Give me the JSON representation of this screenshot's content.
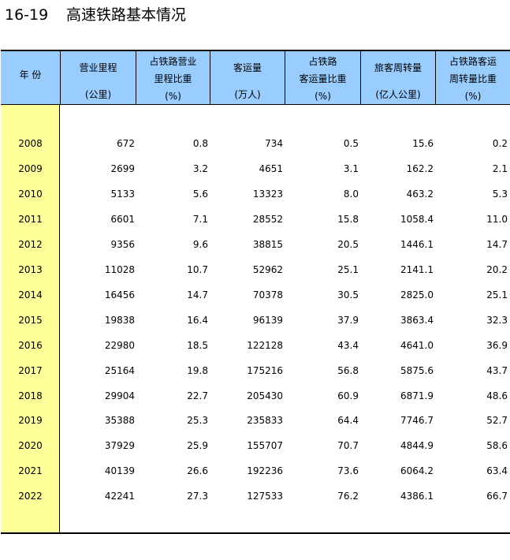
{
  "title": {
    "number": "16-19",
    "text": "高速铁路基本情况"
  },
  "headers": [
    {
      "lines": [
        "年  份"
      ]
    },
    {
      "lines": [
        "营业里程",
        "(公里)"
      ]
    },
    {
      "lines": [
        "占铁路营业",
        "里程比重",
        "(%)"
      ]
    },
    {
      "lines": [
        "客运量",
        "(万人)"
      ]
    },
    {
      "lines": [
        "占铁路",
        "客运量比重",
        "(%)"
      ]
    },
    {
      "lines": [
        "旅客周转量",
        "(亿人公里)"
      ]
    },
    {
      "lines": [
        "占铁路客运",
        "周转量比重",
        "(%)"
      ]
    }
  ],
  "rows": [
    [
      "2008",
      "672",
      "0.8",
      "734",
      "0.5",
      "15.6",
      "0.2"
    ],
    [
      "2009",
      "2699",
      "3.2",
      "4651",
      "3.1",
      "162.2",
      "2.1"
    ],
    [
      "2010",
      "5133",
      "5.6",
      "13323",
      "8.0",
      "463.2",
      "5.3"
    ],
    [
      "2011",
      "6601",
      "7.1",
      "28552",
      "15.8",
      "1058.4",
      "11.0"
    ],
    [
      "2012",
      "9356",
      "9.6",
      "38815",
      "20.5",
      "1446.1",
      "14.7"
    ],
    [
      "2013",
      "11028",
      "10.7",
      "52962",
      "25.1",
      "2141.1",
      "20.2"
    ],
    [
      "2014",
      "16456",
      "14.7",
      "70378",
      "30.5",
      "2825.0",
      "25.1"
    ],
    [
      "2015",
      "19838",
      "16.4",
      "96139",
      "37.9",
      "3863.4",
      "32.3"
    ],
    [
      "2016",
      "22980",
      "18.5",
      "122128",
      "43.4",
      "4641.0",
      "36.9"
    ],
    [
      "2017",
      "25164",
      "19.8",
      "175216",
      "56.8",
      "5875.6",
      "43.7"
    ],
    [
      "2018",
      "29904",
      "22.7",
      "205430",
      "60.9",
      "6871.9",
      "48.6"
    ],
    [
      "2019",
      "35388",
      "25.3",
      "235833",
      "64.4",
      "7746.7",
      "52.7"
    ],
    [
      "2020",
      "37929",
      "25.9",
      "155707",
      "70.7",
      "4844.9",
      "58.6"
    ],
    [
      "2021",
      "40139",
      "26.6",
      "192236",
      "73.6",
      "6064.2",
      "63.4"
    ],
    [
      "2022",
      "42241",
      "27.3",
      "127533",
      "76.2",
      "4386.1",
      "66.7"
    ]
  ],
  "colors": {
    "header_bg": "#99ccff",
    "year_col_bg": "#ffff99"
  }
}
